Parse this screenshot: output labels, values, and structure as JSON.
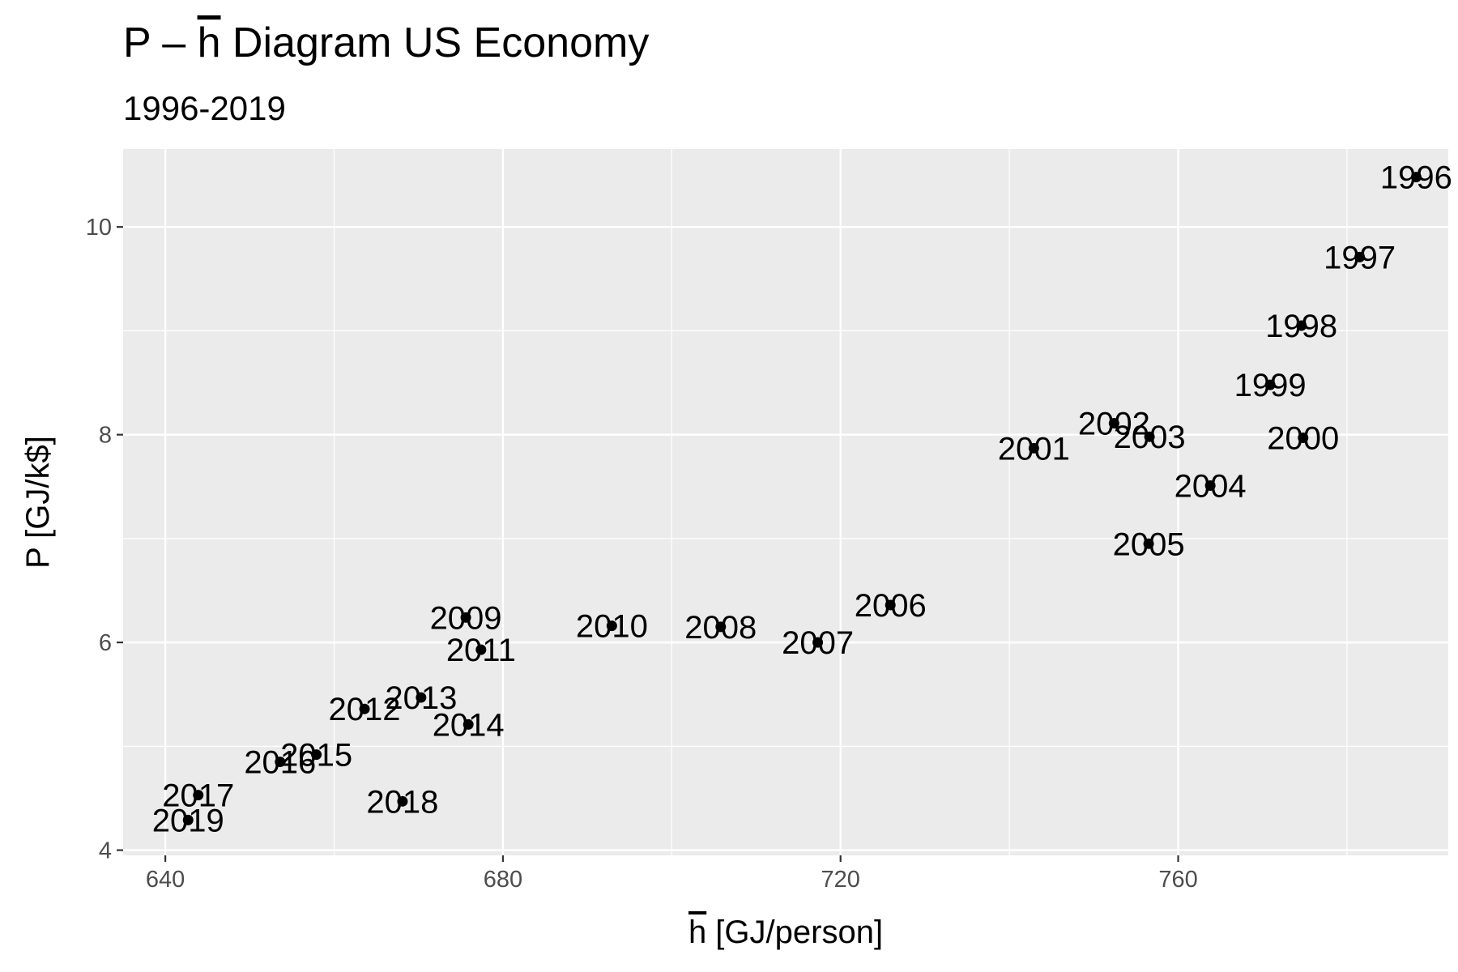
{
  "chart_data": {
    "type": "scatter",
    "title_prefix": "P – ",
    "title_symbol": "h",
    "title_suffix": " Diagram US Economy",
    "subtitle": "1996-2019",
    "xlabel_symbol": "h",
    "xlabel_suffix": " [GJ/person]",
    "ylabel": "P [GJ/k$]",
    "xlim": [
      635,
      792
    ],
    "ylim": [
      3.95,
      10.75
    ],
    "x_ticks": [
      640,
      680,
      720,
      760
    ],
    "x_tick_labels": [
      "640",
      "680",
      "720",
      "760"
    ],
    "y_ticks": [
      4,
      6,
      8,
      10
    ],
    "y_tick_labels": [
      "4",
      "6",
      "8",
      "10"
    ],
    "grid": true,
    "legend": "none",
    "colors": {
      "panel_background": "#ebebeb",
      "grid_line": "#ffffff",
      "point": "#000000",
      "tick": "#333333"
    },
    "points": [
      {
        "label": "1996",
        "x": 788.2,
        "y": 10.48
      },
      {
        "label": "1997",
        "x": 781.5,
        "y": 9.71
      },
      {
        "label": "1998",
        "x": 774.6,
        "y": 9.05
      },
      {
        "label": "1999",
        "x": 770.9,
        "y": 8.48
      },
      {
        "label": "2000",
        "x": 774.8,
        "y": 7.97
      },
      {
        "label": "2001",
        "x": 742.9,
        "y": 7.87
      },
      {
        "label": "2002",
        "x": 752.4,
        "y": 8.11
      },
      {
        "label": "2003",
        "x": 756.6,
        "y": 7.98
      },
      {
        "label": "2004",
        "x": 763.8,
        "y": 7.51
      },
      {
        "label": "2005",
        "x": 756.5,
        "y": 6.95
      },
      {
        "label": "2006",
        "x": 725.9,
        "y": 6.36
      },
      {
        "label": "2007",
        "x": 717.3,
        "y": 6.0
      },
      {
        "label": "2008",
        "x": 705.8,
        "y": 6.15
      },
      {
        "label": "2009",
        "x": 675.6,
        "y": 6.24
      },
      {
        "label": "2010",
        "x": 692.9,
        "y": 6.16
      },
      {
        "label": "2011",
        "x": 677.4,
        "y": 5.93
      },
      {
        "label": "2012",
        "x": 663.6,
        "y": 5.36
      },
      {
        "label": "2013",
        "x": 670.3,
        "y": 5.47
      },
      {
        "label": "2014",
        "x": 675.9,
        "y": 5.21
      },
      {
        "label": "2015",
        "x": 657.9,
        "y": 4.92
      },
      {
        "label": "2016",
        "x": 653.6,
        "y": 4.85
      },
      {
        "label": "2017",
        "x": 643.9,
        "y": 4.53
      },
      {
        "label": "2018",
        "x": 668.1,
        "y": 4.47
      },
      {
        "label": "2019",
        "x": 642.7,
        "y": 4.29
      }
    ]
  }
}
